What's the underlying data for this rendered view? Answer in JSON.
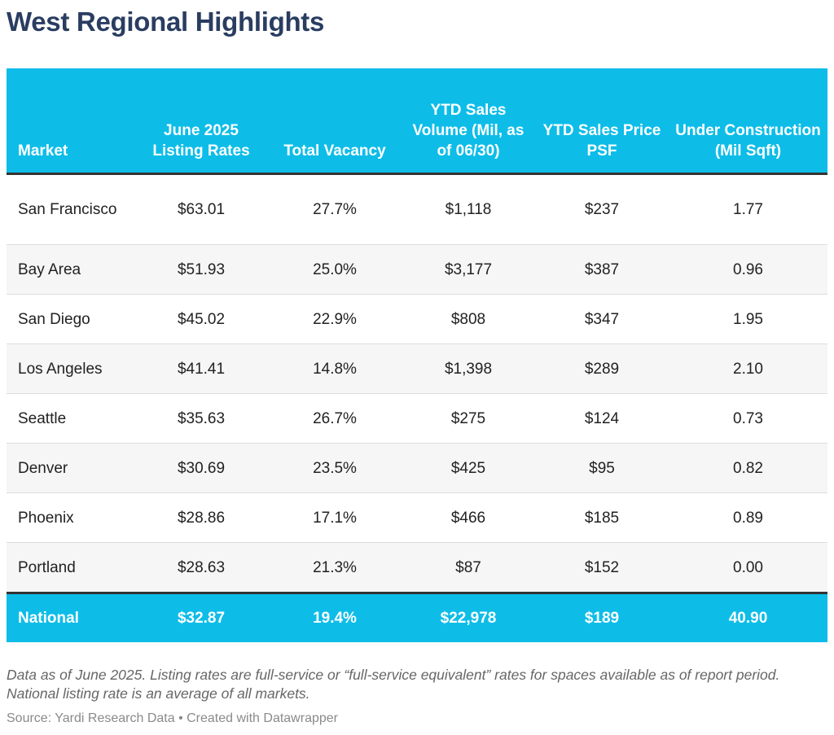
{
  "title": "West Regional Highlights",
  "colors": {
    "header_bg": "#0dbde8",
    "title": "#2a3d61",
    "alt_row": "#f6f6f6"
  },
  "chart_data": {
    "type": "table",
    "columns": [
      "Market",
      "June 2025 Listing Rates",
      "Total Vacancy",
      "YTD Sales Volume (Mil, as of 06/30)",
      "YTD Sales Price PSF",
      "Under Construction (Mil Sqft)"
    ],
    "rows": [
      [
        "San Francisco",
        "$63.01",
        "27.7%",
        "$1,118",
        "$237",
        "1.77"
      ],
      [
        "Bay Area",
        "$51.93",
        "25.0%",
        "$3,177",
        "$387",
        "0.96"
      ],
      [
        "San Diego",
        "$45.02",
        "22.9%",
        "$808",
        "$347",
        "1.95"
      ],
      [
        "Los Angeles",
        "$41.41",
        "14.8%",
        "$1,398",
        "$289",
        "2.10"
      ],
      [
        "Seattle",
        "$35.63",
        "26.7%",
        "$275",
        "$124",
        "0.73"
      ],
      [
        "Denver",
        "$30.69",
        "23.5%",
        "$425",
        "$95",
        "0.82"
      ],
      [
        "Phoenix",
        "$28.86",
        "17.1%",
        "$466",
        "$185",
        "0.89"
      ],
      [
        "Portland",
        "$28.63",
        "21.3%",
        "$87",
        "$152",
        "0.00"
      ]
    ],
    "total_row": [
      "National",
      "$32.87",
      "19.4%",
      "$22,978",
      "$189",
      "40.90"
    ]
  },
  "note": "Data as of June 2025. Listing rates are full-service or “full-service equivalent” rates for spaces available as of report period. National listing rate is an average of all markets.",
  "source": "Source: Yardi Research Data • Created with Datawrapper"
}
